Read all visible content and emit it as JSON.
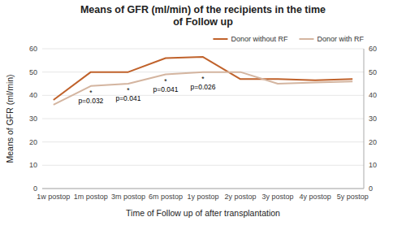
{
  "chart_data": {
    "type": "line",
    "title": "Means of GFR (ml/min) of the recipients in the time\nof Follow up",
    "x_label": "Time of Follow up of after transplantation",
    "y_label": "Means of GFR (ml/min)",
    "categories": [
      "1w postop",
      "1m postop",
      "3m postop",
      "6m postop",
      "1y postop",
      "2y postop",
      "3y postop",
      "4y postop",
      "5y postop"
    ],
    "series": [
      {
        "name": "Donor without RF",
        "color": "#C0622B",
        "values": [
          38,
          50,
          50,
          56,
          56.5,
          47,
          47,
          46.5,
          47
        ]
      },
      {
        "name": "Donor with RF",
        "color": "#D4B5A0",
        "values": [
          36,
          44,
          45,
          49,
          50,
          50,
          45,
          45.5,
          46
        ]
      }
    ],
    "ylim": [
      0,
      60
    ],
    "yticks": [
      0,
      10,
      20,
      30,
      40,
      50,
      60
    ],
    "y2lim": [
      0,
      60
    ],
    "y2ticks": [
      0,
      10,
      20,
      30,
      40,
      50,
      60
    ],
    "annotations": [
      {
        "x": "1m postop",
        "label": "*\np=0.032"
      },
      {
        "x": "3m postop",
        "label": "*\np=0.041"
      },
      {
        "x": "6m postop",
        "label": "*\np=0.041"
      },
      {
        "x": "1y postop",
        "label": "*\np=0.026"
      }
    ],
    "grid": true,
    "legend": "top-right"
  }
}
